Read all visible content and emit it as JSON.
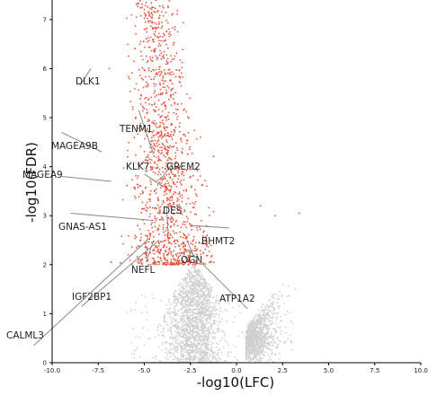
{
  "chart_data": {
    "type": "scatter",
    "title": "",
    "xlabel": "-log10(LFC)",
    "ylabel": "-log10(FDR)",
    "xlim": [
      -10.0,
      10.0
    ],
    "ylim": [
      0,
      7.4
    ],
    "x_ticks": [
      "-10.0",
      "-7.5",
      "-5.0",
      "-2.5",
      "0.0",
      "2.5",
      "5.0",
      "7.5",
      "10.0"
    ],
    "x_tick_values": [
      -10,
      -7.5,
      -5,
      -2.5,
      0,
      2.5,
      5,
      7.5,
      10
    ],
    "y_ticks": [
      "0",
      "1",
      "2",
      "3",
      "4",
      "5",
      "6",
      "7"
    ],
    "y_tick_values": [
      0,
      1,
      2,
      3,
      4,
      5,
      6,
      7
    ],
    "grid": false,
    "legend": "none",
    "colors": {
      "significant": "#e8543a",
      "non_significant": "#d0d0d0",
      "annotation_line": "#888888"
    },
    "series": [
      {
        "significance": "significant",
        "color": "#e8543a",
        "description_of_cloud": "dense cluster of points with x roughly between -5.5 and -1.5 and y roughly between 2.0 and 7.4"
      },
      {
        "significance": "non_significant",
        "color": "#d0d0d0",
        "description_of_cloud": "dense V-shaped cloud with x roughly between -6 and 3 and y below 2.1"
      }
    ],
    "annotations": [
      {
        "label": "DLK1",
        "point": [
          -8.5,
          5.65
        ],
        "arrow_from": [
          -7.9,
          6.0
        ]
      },
      {
        "label": "TENM1",
        "point": [
          -4.5,
          4.25
        ],
        "arrow_from": [
          -5.3,
          5.15
        ]
      },
      {
        "label": "MAGEA9B",
        "point": [
          -7.3,
          4.3
        ],
        "arrow_from": [
          -9.5,
          4.7
        ]
      },
      {
        "label": "KLK7",
        "point": [
          -4.0,
          3.6
        ],
        "arrow_from": [
          -5.0,
          3.85
        ]
      },
      {
        "label": "GREM2",
        "point": [
          -4.1,
          3.75
        ],
        "arrow_from": [
          -3.5,
          4.05
        ]
      },
      {
        "label": "MAGEA9",
        "point": [
          -6.8,
          3.7
        ],
        "arrow_from": [
          -9.5,
          3.8
        ]
      },
      {
        "label": "DES",
        "point": [
          -3.7,
          2.6
        ],
        "arrow_from": [
          -3.8,
          3.2
        ]
      },
      {
        "label": "GNAS-AS1",
        "point": [
          -4.5,
          2.9
        ],
        "arrow_from": [
          -9.0,
          3.05
        ]
      },
      {
        "label": "BHMT2",
        "point": [
          -2.5,
          2.8
        ],
        "arrow_from": [
          -0.4,
          2.75
        ]
      },
      {
        "label": "OGN",
        "point": [
          -2.7,
          2.5
        ],
        "arrow_from": [
          -2.3,
          2.15
        ]
      },
      {
        "label": "NEFL",
        "point": [
          -4.5,
          2.5
        ],
        "arrow_from": [
          -4.9,
          2.05
        ]
      },
      {
        "label": "IGF2BP1",
        "point": [
          -4.2,
          2.5
        ],
        "arrow_from": [
          -8.4,
          1.15
        ]
      },
      {
        "label": "ATP1A2",
        "point": [
          -2.6,
          2.3
        ],
        "arrow_from": [
          0.6,
          1.1
        ]
      },
      {
        "label": "CALML3",
        "point": [
          -4.7,
          2.55
        ],
        "arrow_from": [
          -11.0,
          0.35
        ]
      }
    ]
  }
}
